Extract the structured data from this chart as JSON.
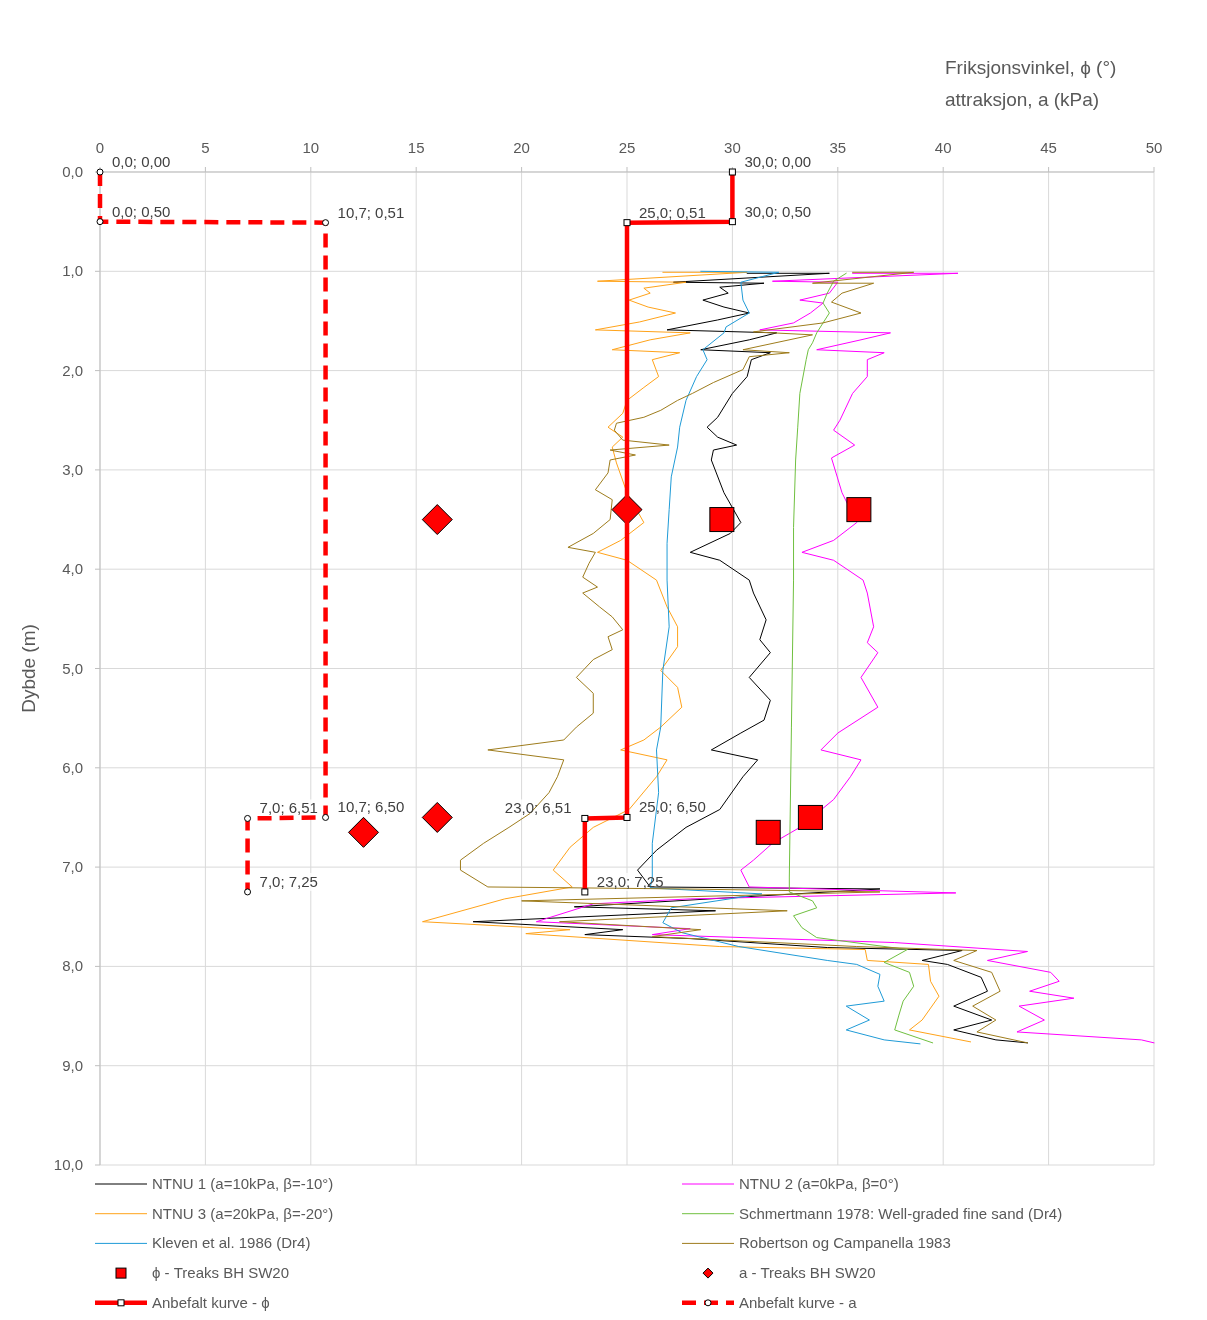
{
  "chart_data": {
    "type": "line",
    "xlabel": "Friksjonsvinkel, ϕ (°)\nattraksjon, a (kPa)",
    "ylabel": "Dybde (m)",
    "xlim": [
      0,
      50
    ],
    "xticks": [
      0,
      5,
      10,
      15,
      20,
      25,
      30,
      35,
      40,
      45,
      50
    ],
    "ylim": [
      10,
      0
    ],
    "yticks": [
      {
        "value": 0,
        "label": "0,0"
      },
      {
        "value": 1,
        "label": "1,0"
      },
      {
        "value": 2,
        "label": "2,0"
      },
      {
        "value": 3,
        "label": "3,0"
      },
      {
        "value": 4,
        "label": "4,0"
      },
      {
        "value": 5,
        "label": "5,0"
      },
      {
        "value": 6,
        "label": "6,0"
      },
      {
        "value": 7,
        "label": "7,0"
      },
      {
        "value": 8,
        "label": "8,0"
      },
      {
        "value": 9,
        "label": "9,0"
      },
      {
        "value": 10,
        "label": "10,0"
      }
    ],
    "grid": true,
    "legend": "bottom",
    "series": [
      {
        "name": "NTNU 1 (a=10kPa, β=-10°)",
        "color": "#000000",
        "marker": "none",
        "line_style": "solid",
        "x": [
          30.7,
          34.6,
          27.2,
          31.5,
          29.4,
          29.8,
          28.6,
          29.6,
          30.8,
          29.3,
          26.9,
          32.1,
          30.8,
          28.5,
          31.8,
          30.9,
          30.7,
          30.0,
          29.3,
          28.8,
          29.3,
          30.2,
          29.1,
          29.0,
          29.6,
          30.4,
          29.9,
          28.0,
          29.4,
          30.8,
          31.0,
          31.6,
          31.3,
          31.8,
          30.8,
          31.8,
          31.5,
          30.4,
          29.0,
          31.2,
          30.5,
          29.4,
          27.8,
          26.4,
          25.5,
          26.1,
          37.0,
          22.5,
          29.2,
          17.7,
          24.8,
          23.0,
          28.0,
          34.5,
          40.9,
          39.0,
          40.2,
          41.8,
          42.1,
          40.5,
          42.3,
          40.5,
          42.5,
          44.0
        ],
        "values": [
          1.02,
          1.02,
          1.11,
          1.12,
          1.16,
          1.22,
          1.29,
          1.36,
          1.42,
          1.49,
          1.59,
          1.62,
          1.69,
          1.79,
          1.82,
          1.89,
          2.06,
          2.23,
          2.47,
          2.57,
          2.67,
          2.75,
          2.8,
          2.9,
          3.23,
          3.53,
          3.64,
          3.83,
          3.91,
          4.11,
          4.24,
          4.51,
          4.71,
          4.84,
          5.09,
          5.32,
          5.52,
          5.65,
          5.82,
          5.92,
          6.09,
          6.42,
          6.6,
          6.83,
          7.03,
          7.2,
          7.22,
          7.4,
          7.44,
          7.55,
          7.63,
          7.68,
          7.72,
          7.81,
          7.84,
          7.94,
          7.98,
          8.11,
          8.25,
          8.4,
          8.54,
          8.64,
          8.74,
          8.77
        ]
      },
      {
        "name": "NTNU 2 (a=0kPa, β=0°)",
        "color": "#ff00ff",
        "marker": "none",
        "line_style": "solid",
        "x": [
          35.7,
          40.7,
          31.9,
          35.0,
          34.6,
          33.2,
          34.3,
          33.7,
          32.9,
          31.3,
          37.5,
          36.1,
          34.0,
          37.2,
          36.4,
          36.4,
          35.7,
          35.1,
          34.8,
          35.8,
          34.7,
          35.2,
          35.9,
          34.8,
          33.3,
          34.8,
          36.2,
          36.4,
          36.7,
          36.4,
          36.9,
          36.1,
          36.9,
          35.0,
          34.2,
          36.1,
          35.6,
          34.8,
          33.2,
          31.9,
          31.0,
          30.4,
          30.8,
          40.6,
          28.0,
          23.4,
          20.7,
          28.0,
          26.2,
          37.7,
          44.0,
          42.1,
          45.1,
          45.5,
          44.1,
          46.2,
          43.6,
          44.8,
          43.5,
          49.4,
          50.0
        ],
        "values": [
          1.02,
          1.02,
          1.1,
          1.11,
          1.22,
          1.29,
          1.32,
          1.42,
          1.52,
          1.59,
          1.62,
          1.69,
          1.79,
          1.82,
          1.89,
          2.06,
          2.23,
          2.5,
          2.6,
          2.75,
          2.88,
          3.23,
          3.53,
          3.71,
          3.83,
          3.91,
          4.11,
          4.24,
          4.58,
          4.74,
          4.84,
          5.09,
          5.39,
          5.65,
          5.82,
          5.92,
          6.09,
          6.32,
          6.6,
          6.76,
          6.93,
          7.03,
          7.2,
          7.26,
          7.32,
          7.37,
          7.55,
          7.62,
          7.68,
          7.76,
          7.85,
          7.94,
          8.06,
          8.15,
          8.25,
          8.32,
          8.4,
          8.54,
          8.66,
          8.74,
          8.77
        ]
      },
      {
        "name": "NTNU 3 (a=20kPa, β=-20°)",
        "color": "#ffa31a",
        "marker": "none",
        "line_style": "solid",
        "x": [
          26.7,
          30.7,
          23.6,
          27.8,
          25.8,
          26.1,
          25.1,
          26.0,
          27.3,
          25.6,
          23.5,
          28.0,
          26.1,
          24.3,
          27.5,
          26.2,
          26.5,
          25.8,
          25.0,
          24.8,
          24.1,
          24.8,
          24.3,
          24.5,
          25.0,
          25.8,
          24.7,
          23.6,
          25.0,
          26.4,
          26.9,
          27.4,
          27.4,
          26.6,
          27.4,
          27.6,
          26.6,
          25.8,
          24.7,
          26.9,
          26.4,
          25.1,
          23.4,
          22.3,
          21.5,
          22.4,
          19.2,
          15.3,
          22.3,
          20.2,
          29.4,
          36.3,
          36.4,
          39.3,
          39.4,
          39.8,
          39.0,
          38.4,
          41.3
        ],
        "values": [
          1.01,
          1.01,
          1.1,
          1.11,
          1.17,
          1.22,
          1.29,
          1.36,
          1.42,
          1.51,
          1.59,
          1.62,
          1.69,
          1.79,
          1.82,
          1.89,
          2.06,
          2.17,
          2.3,
          2.43,
          2.57,
          2.67,
          2.77,
          2.93,
          3.23,
          3.53,
          3.71,
          3.83,
          3.91,
          4.11,
          4.38,
          4.58,
          4.78,
          5.02,
          5.19,
          5.39,
          5.59,
          5.72,
          5.82,
          5.92,
          6.09,
          6.42,
          6.6,
          6.8,
          7.03,
          7.2,
          7.32,
          7.55,
          7.63,
          7.67,
          7.8,
          7.83,
          7.94,
          7.98,
          8.15,
          8.3,
          8.54,
          8.64,
          8.76
        ]
      },
      {
        "name": "Schmertmann 1978: Well-graded fine sand  (Dr4)",
        "color": "#70c040",
        "marker": "none",
        "line_style": "solid",
        "x": [
          35.4,
          34.8,
          34.5,
          34.3,
          34.6,
          34.3,
          34.0,
          33.8,
          33.6,
          33.5,
          33.2,
          33.1,
          33.0,
          32.9,
          32.9,
          32.8,
          32.7,
          32.7,
          33.8,
          34.0,
          32.9,
          33.3,
          34.0,
          38.3,
          37.2,
          38.4,
          38.6,
          38.1,
          37.9,
          37.7,
          39.5
        ],
        "values": [
          1.02,
          1.1,
          1.22,
          1.32,
          1.42,
          1.52,
          1.62,
          1.72,
          1.79,
          1.89,
          2.23,
          2.57,
          2.9,
          3.58,
          4.11,
          5.59,
          7.1,
          7.25,
          7.34,
          7.41,
          7.49,
          7.61,
          7.71,
          7.83,
          7.96,
          8.06,
          8.2,
          8.35,
          8.49,
          8.64,
          8.77
        ]
      },
      {
        "name": "Kleven et al. 1986 (Dr4)",
        "color": "#1f9bd7",
        "marker": "none",
        "line_style": "solid",
        "x": [
          28.5,
          32.2,
          30.4,
          30.5,
          30.8,
          29.7,
          29.6,
          28.6,
          28.8,
          28.3,
          27.8,
          27.5,
          27.4,
          27.1,
          27.0,
          26.9,
          26.9,
          27.0,
          26.7,
          26.6,
          26.4,
          26.5,
          26.2,
          26.2,
          26.1,
          31.4,
          27.1,
          26.7,
          27.6,
          30.3,
          34.5,
          35.9,
          37.0,
          36.9,
          37.2,
          35.4,
          36.5,
          35.4,
          37.2,
          38.9
        ],
        "values": [
          1.0,
          1.01,
          1.11,
          1.29,
          1.42,
          1.56,
          1.62,
          1.79,
          1.89,
          2.06,
          2.3,
          2.57,
          2.77,
          3.07,
          3.4,
          3.74,
          4.11,
          4.58,
          5.02,
          5.59,
          5.82,
          6.25,
          6.76,
          7.1,
          7.21,
          7.27,
          7.41,
          7.56,
          7.66,
          7.8,
          7.94,
          7.98,
          8.08,
          8.2,
          8.35,
          8.4,
          8.54,
          8.64,
          8.74,
          8.78
        ]
      },
      {
        "name": "Robertson og Campanella 1983",
        "color": "#9e7c1c",
        "marker": "none",
        "line_style": "solid",
        "x": [
          35.7,
          38.6,
          33.8,
          36.7,
          35.2,
          34.7,
          36.1,
          34.3,
          31.0,
          33.8,
          30.5,
          32.7,
          30.8,
          30.5,
          29.1,
          28.1,
          27.4,
          26.6,
          25.8,
          24.5,
          24.4,
          24.8,
          27.0,
          24.2,
          25.4,
          24.2,
          24.1,
          23.5,
          24.3,
          24.2,
          23.4,
          22.2,
          23.5,
          23.2,
          22.9,
          23.6,
          22.9,
          23.7,
          24.3,
          24.8,
          24.1,
          24.3,
          23.4,
          22.6,
          23.4,
          23.4,
          22.6,
          22.0,
          18.4,
          22.0,
          21.7,
          21.3,
          20.4,
          19.4,
          18.2,
          17.1,
          17.1,
          18.4,
          27.6,
          37.0,
          20.0,
          32.6,
          21.8,
          28.5,
          26.2,
          35.9,
          41.6,
          40.5,
          42.3,
          42.7,
          41.4,
          42.5,
          41.6,
          44.0
        ],
        "values": [
          1.01,
          1.01,
          1.12,
          1.12,
          1.22,
          1.31,
          1.42,
          1.52,
          1.61,
          1.64,
          1.79,
          1.82,
          1.86,
          1.99,
          2.12,
          2.23,
          2.3,
          2.4,
          2.47,
          2.53,
          2.6,
          2.7,
          2.75,
          2.8,
          2.85,
          2.9,
          3.03,
          3.2,
          3.3,
          3.5,
          3.64,
          3.78,
          3.83,
          3.94,
          4.08,
          4.18,
          4.24,
          4.38,
          4.48,
          4.61,
          4.68,
          4.81,
          4.91,
          5.09,
          5.25,
          5.45,
          5.59,
          5.72,
          5.82,
          5.92,
          6.09,
          6.25,
          6.46,
          6.6,
          6.76,
          6.93,
          7.03,
          7.2,
          7.22,
          7.25,
          7.34,
          7.44,
          7.55,
          7.63,
          7.7,
          7.8,
          7.84,
          7.94,
          8.06,
          8.25,
          8.4,
          8.54,
          8.66,
          8.77
        ]
      },
      {
        "name": "ϕ - Treaks BH SW20",
        "type": "scatter",
        "color": "#ff0000",
        "marker": "square",
        "x": [
          29.5,
          36.0,
          31.7,
          33.7
        ],
        "values": [
          3.5,
          3.4,
          6.65,
          6.5
        ]
      },
      {
        "name": "a - Treaks BH SW20",
        "type": "scatter",
        "color": "#ff0000",
        "marker": "diamond",
        "x": [
          16.0,
          25.0,
          16.0,
          12.5
        ],
        "values": [
          3.5,
          3.4,
          6.5,
          6.65
        ]
      },
      {
        "name": "Anbefalt kurve - ϕ",
        "color": "#ff0000",
        "marker": "square",
        "line_style": "solid",
        "x": [
          30,
          30,
          25,
          25,
          23,
          23
        ],
        "values": [
          0,
          0.5,
          0.51,
          6.5,
          6.51,
          7.25
        ],
        "value_labels": [
          "30,0; 0,00",
          "30,0; 0,50",
          "25,0; 0,51",
          "25,0; 6,50",
          "23,0; 6,51",
          "23,0; 7,25"
        ]
      },
      {
        "name": "Anbefalt kurve - a",
        "color": "#ff0000",
        "marker": "circle",
        "line_style": "dashed",
        "x": [
          0,
          0,
          10.7,
          10.7,
          7.0,
          7.0
        ],
        "values": [
          0,
          0.5,
          0.51,
          6.5,
          6.51,
          7.25
        ],
        "value_labels": [
          "0,0; 0,00",
          "0,0; 0,50",
          "10,7; 0,51",
          "10,7; 6,50",
          "7,0; 6,51",
          "7,0; 7,25"
        ]
      }
    ]
  }
}
